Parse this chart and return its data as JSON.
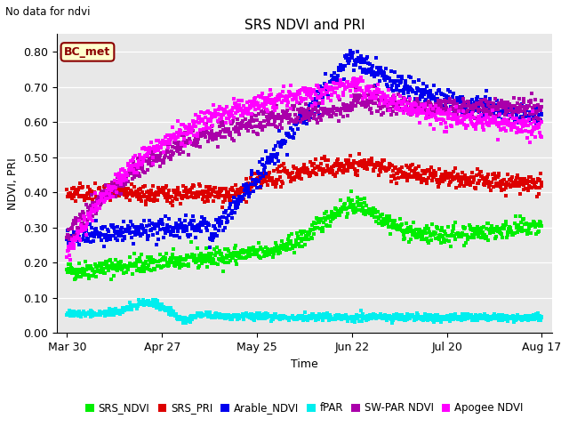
{
  "title": "SRS NDVI and PRI",
  "no_data_text": "No data for ndvi",
  "xlabel": "Time",
  "ylabel": "NDVI, PRI",
  "ylim": [
    0.0,
    0.85
  ],
  "yticks": [
    0.0,
    0.1,
    0.2,
    0.3,
    0.4,
    0.5,
    0.6,
    0.7,
    0.8
  ],
  "bg_color": "#e8e8e8",
  "fig_color": "#ffffff",
  "annotation_box": "BC_met",
  "annotation_color": "#8B0000",
  "annotation_bg": "#ffffcc",
  "legend_labels": [
    "SRS_NDVI",
    "SRS_PRI",
    "Arable_NDVI",
    "fPAR",
    "SW-PAR NDVI",
    "Apogee NDVI"
  ],
  "legend_colors": [
    "#00ee00",
    "#dd0000",
    "#0000ee",
    "#00eeee",
    "#aa00aa",
    "#ff00ff"
  ],
  "xtick_labels": [
    "Mar 30",
    "Apr 27",
    "May 25",
    "Jun 22",
    "Jul 20",
    "Aug 17"
  ],
  "xtick_positions": [
    0,
    28,
    56,
    84,
    112,
    140
  ],
  "seed": 42,
  "n_points": 800
}
